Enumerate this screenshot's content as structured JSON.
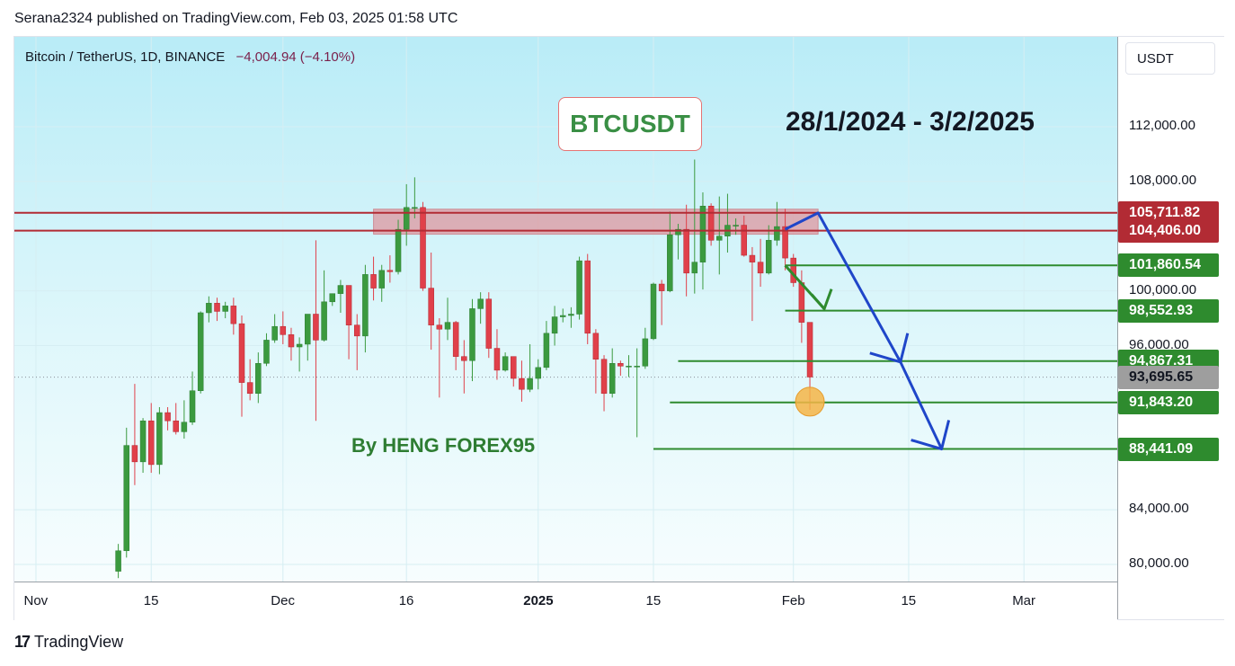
{
  "header": "Serana2324 published on TradingView.com, Feb 03, 2025 01:58 UTC",
  "symbol": {
    "name": "Bitcoin / TetherUS, 1D, BINANCE",
    "change": "−4,004.94 (−4.10%)"
  },
  "annotations": {
    "title": "BTCUSDT",
    "date_range": "28/1/2024 - 3/2/2025",
    "author": "By HENG FOREX95"
  },
  "currency": "USDT",
  "footer": {
    "logo": "17",
    "text": "TradingView"
  },
  "colors": {
    "up": "#3b9a3f",
    "down": "#e0404a",
    "line_red": "#b22b34",
    "line_green": "#2e8b2e",
    "arrow": "#1f46c9",
    "marker": "#f5b547",
    "current": "#9e9e9e"
  },
  "chart_data": {
    "type": "candlestick",
    "ylim": [
      79000,
      117000
    ],
    "y_ticks": [
      {
        "value": 112000,
        "label": "112,000.00"
      },
      {
        "value": 108000,
        "label": "108,000.00"
      },
      {
        "value": 100000,
        "label": "100,000.00"
      },
      {
        "value": 96000,
        "label": "96,000.00"
      },
      {
        "value": 84000,
        "label": "84,000.00"
      },
      {
        "value": 80000,
        "label": "80,000.00"
      }
    ],
    "x_ticks": [
      {
        "label": "Nov",
        "date": "2024-11-01",
        "bold": false
      },
      {
        "label": "15",
        "date": "2024-11-15",
        "bold": false
      },
      {
        "label": "Dec",
        "date": "2024-12-01",
        "bold": false
      },
      {
        "label": "16",
        "date": "2024-12-16",
        "bold": false
      },
      {
        "label": "2025",
        "date": "2025-01-01",
        "bold": true
      },
      {
        "label": "15",
        "date": "2025-01-15",
        "bold": false
      },
      {
        "label": "Feb",
        "date": "2025-02-01",
        "bold": false
      },
      {
        "label": "15",
        "date": "2025-02-15",
        "bold": false
      },
      {
        "label": "Mar",
        "date": "2025-03-01",
        "bold": false
      }
    ],
    "candles": [
      {
        "date": "2024-11-11",
        "o": 79500,
        "h": 81500,
        "l": 79000,
        "c": 81000
      },
      {
        "date": "2024-11-12",
        "o": 81000,
        "h": 90000,
        "l": 80500,
        "c": 88700
      },
      {
        "date": "2024-11-13",
        "o": 88700,
        "h": 93200,
        "l": 85800,
        "c": 87500
      },
      {
        "date": "2024-11-14",
        "o": 87500,
        "h": 90700,
        "l": 86700,
        "c": 90500
      },
      {
        "date": "2024-11-15",
        "o": 90500,
        "h": 91800,
        "l": 86700,
        "c": 87300
      },
      {
        "date": "2024-11-16",
        "o": 87300,
        "h": 91500,
        "l": 86600,
        "c": 91100
      },
      {
        "date": "2024-11-17",
        "o": 91100,
        "h": 91500,
        "l": 89800,
        "c": 90500
      },
      {
        "date": "2024-11-18",
        "o": 90500,
        "h": 91800,
        "l": 89500,
        "c": 89700
      },
      {
        "date": "2024-11-19",
        "o": 89700,
        "h": 92000,
        "l": 89200,
        "c": 90400
      },
      {
        "date": "2024-11-20",
        "o": 90400,
        "h": 94100,
        "l": 90200,
        "c": 92700
      },
      {
        "date": "2024-11-21",
        "o": 92700,
        "h": 98500,
        "l": 92500,
        "c": 98400
      },
      {
        "date": "2024-11-22",
        "o": 98400,
        "h": 99600,
        "l": 97700,
        "c": 99100
      },
      {
        "date": "2024-11-23",
        "o": 99100,
        "h": 99500,
        "l": 97800,
        "c": 98500
      },
      {
        "date": "2024-11-24",
        "o": 98500,
        "h": 99200,
        "l": 98000,
        "c": 98900
      },
      {
        "date": "2024-11-25",
        "o": 98900,
        "h": 99500,
        "l": 96800,
        "c": 97600
      },
      {
        "date": "2024-11-26",
        "o": 97600,
        "h": 98200,
        "l": 90800,
        "c": 93300
      },
      {
        "date": "2024-11-27",
        "o": 93300,
        "h": 95000,
        "l": 92000,
        "c": 92500
      },
      {
        "date": "2024-11-28",
        "o": 92500,
        "h": 95500,
        "l": 91800,
        "c": 94700
      },
      {
        "date": "2024-11-29",
        "o": 94700,
        "h": 96900,
        "l": 94500,
        "c": 96400
      },
      {
        "date": "2024-11-30",
        "o": 96400,
        "h": 98300,
        "l": 96200,
        "c": 97400
      },
      {
        "date": "2024-12-01",
        "o": 97400,
        "h": 98500,
        "l": 96100,
        "c": 96800
      },
      {
        "date": "2024-12-02",
        "o": 96800,
        "h": 97300,
        "l": 94900,
        "c": 95900
      },
      {
        "date": "2024-12-03",
        "o": 95900,
        "h": 96600,
        "l": 94100,
        "c": 96100
      },
      {
        "date": "2024-12-04",
        "o": 96100,
        "h": 98200,
        "l": 94900,
        "c": 98300
      },
      {
        "date": "2024-12-05",
        "o": 98300,
        "h": 103700,
        "l": 90500,
        "c": 96400
      },
      {
        "date": "2024-12-06",
        "o": 96400,
        "h": 101500,
        "l": 96300,
        "c": 99200
      },
      {
        "date": "2024-12-07",
        "o": 99200,
        "h": 99800,
        "l": 98900,
        "c": 99800
      },
      {
        "date": "2024-12-08",
        "o": 99800,
        "h": 100800,
        "l": 98400,
        "c": 100400
      },
      {
        "date": "2024-12-09",
        "o": 100400,
        "h": 100400,
        "l": 95000,
        "c": 97500
      },
      {
        "date": "2024-12-10",
        "o": 97500,
        "h": 98300,
        "l": 94200,
        "c": 96700
      },
      {
        "date": "2024-12-11",
        "o": 96700,
        "h": 101900,
        "l": 95500,
        "c": 101200
      },
      {
        "date": "2024-12-12",
        "o": 101200,
        "h": 102500,
        "l": 99300,
        "c": 100200
      },
      {
        "date": "2024-12-13",
        "o": 100200,
        "h": 101900,
        "l": 99200,
        "c": 101500
      },
      {
        "date": "2024-12-14",
        "o": 101500,
        "h": 102600,
        "l": 100600,
        "c": 101400
      },
      {
        "date": "2024-12-15",
        "o": 101400,
        "h": 105200,
        "l": 101200,
        "c": 104500
      },
      {
        "date": "2024-12-16",
        "o": 104500,
        "h": 107800,
        "l": 103300,
        "c": 106100
      },
      {
        "date": "2024-12-17",
        "o": 106100,
        "h": 108300,
        "l": 105300,
        "c": 106100
      },
      {
        "date": "2024-12-18",
        "o": 106100,
        "h": 106500,
        "l": 100000,
        "c": 100200
      },
      {
        "date": "2024-12-19",
        "o": 100200,
        "h": 102800,
        "l": 95700,
        "c": 97500
      },
      {
        "date": "2024-12-20",
        "o": 97500,
        "h": 98000,
        "l": 92200,
        "c": 97200
      },
      {
        "date": "2024-12-21",
        "o": 97200,
        "h": 99500,
        "l": 96400,
        "c": 97700
      },
      {
        "date": "2024-12-22",
        "o": 97700,
        "h": 97800,
        "l": 94200,
        "c": 95200
      },
      {
        "date": "2024-12-23",
        "o": 95200,
        "h": 96400,
        "l": 92500,
        "c": 94900
      },
      {
        "date": "2024-12-24",
        "o": 94900,
        "h": 99400,
        "l": 93400,
        "c": 98700
      },
      {
        "date": "2024-12-25",
        "o": 98700,
        "h": 99900,
        "l": 97600,
        "c": 99400
      },
      {
        "date": "2024-12-26",
        "o": 99400,
        "h": 99900,
        "l": 95100,
        "c": 95800
      },
      {
        "date": "2024-12-27",
        "o": 95800,
        "h": 97200,
        "l": 93500,
        "c": 94200
      },
      {
        "date": "2024-12-28",
        "o": 94200,
        "h": 95500,
        "l": 94100,
        "c": 95200
      },
      {
        "date": "2024-12-29",
        "o": 95200,
        "h": 95200,
        "l": 93000,
        "c": 93600
      },
      {
        "date": "2024-12-30",
        "o": 93600,
        "h": 94900,
        "l": 91900,
        "c": 92800
      },
      {
        "date": "2024-12-31",
        "o": 92800,
        "h": 96100,
        "l": 92600,
        "c": 93600
      },
      {
        "date": "2025-01-01",
        "o": 93600,
        "h": 95000,
        "l": 92800,
        "c": 94400
      },
      {
        "date": "2025-01-02",
        "o": 94400,
        "h": 97800,
        "l": 94200,
        "c": 96900
      },
      {
        "date": "2025-01-03",
        "o": 96900,
        "h": 98900,
        "l": 96000,
        "c": 98100
      },
      {
        "date": "2025-01-04",
        "o": 98100,
        "h": 98700,
        "l": 97700,
        "c": 98200
      },
      {
        "date": "2025-01-05",
        "o": 98200,
        "h": 98800,
        "l": 97300,
        "c": 98300
      },
      {
        "date": "2025-01-06",
        "o": 98300,
        "h": 102500,
        "l": 97900,
        "c": 102200
      },
      {
        "date": "2025-01-07",
        "o": 102200,
        "h": 102700,
        "l": 96100,
        "c": 96900
      },
      {
        "date": "2025-01-08",
        "o": 96900,
        "h": 97200,
        "l": 92500,
        "c": 95000
      },
      {
        "date": "2025-01-09",
        "o": 95000,
        "h": 95300,
        "l": 91200,
        "c": 92500
      },
      {
        "date": "2025-01-10",
        "o": 92500,
        "h": 95800,
        "l": 92200,
        "c": 94700
      },
      {
        "date": "2025-01-11",
        "o": 94700,
        "h": 94900,
        "l": 93800,
        "c": 94500
      },
      {
        "date": "2025-01-12",
        "o": 94500,
        "h": 95300,
        "l": 93700,
        "c": 94500
      },
      {
        "date": "2025-01-13",
        "o": 94500,
        "h": 95800,
        "l": 89300,
        "c": 94500
      },
      {
        "date": "2025-01-14",
        "o": 94500,
        "h": 97300,
        "l": 94300,
        "c": 96500
      },
      {
        "date": "2025-01-15",
        "o": 96500,
        "h": 100600,
        "l": 96400,
        "c": 100500
      },
      {
        "date": "2025-01-16",
        "o": 100500,
        "h": 100800,
        "l": 97500,
        "c": 100000
      },
      {
        "date": "2025-01-17",
        "o": 100000,
        "h": 105800,
        "l": 99900,
        "c": 104100
      },
      {
        "date": "2025-01-18",
        "o": 104100,
        "h": 104900,
        "l": 102300,
        "c": 104500
      },
      {
        "date": "2025-01-19",
        "o": 104500,
        "h": 106300,
        "l": 99600,
        "c": 101300
      },
      {
        "date": "2025-01-20",
        "o": 101300,
        "h": 109600,
        "l": 99800,
        "c": 102100
      },
      {
        "date": "2025-01-21",
        "o": 102100,
        "h": 107200,
        "l": 100100,
        "c": 106200
      },
      {
        "date": "2025-01-22",
        "o": 106200,
        "h": 106400,
        "l": 103300,
        "c": 103700
      },
      {
        "date": "2025-01-23",
        "o": 103700,
        "h": 106900,
        "l": 101200,
        "c": 104000
      },
      {
        "date": "2025-01-24",
        "o": 104000,
        "h": 107100,
        "l": 102800,
        "c": 104800
      },
      {
        "date": "2025-01-25",
        "o": 104800,
        "h": 105300,
        "l": 104100,
        "c": 104800
      },
      {
        "date": "2025-01-26",
        "o": 104800,
        "h": 105500,
        "l": 102500,
        "c": 102600
      },
      {
        "date": "2025-01-27",
        "o": 102600,
        "h": 103200,
        "l": 97800,
        "c": 102100
      },
      {
        "date": "2025-01-28",
        "o": 102100,
        "h": 103800,
        "l": 100300,
        "c": 101300
      },
      {
        "date": "2025-01-29",
        "o": 101300,
        "h": 104800,
        "l": 101200,
        "c": 103700
      },
      {
        "date": "2025-01-30",
        "o": 103700,
        "h": 106500,
        "l": 103300,
        "c": 104700
      },
      {
        "date": "2025-01-31",
        "o": 104700,
        "h": 106000,
        "l": 101500,
        "c": 102400
      },
      {
        "date": "2025-02-01",
        "o": 102400,
        "h": 102700,
        "l": 100300,
        "c": 100600
      },
      {
        "date": "2025-02-02",
        "o": 100600,
        "h": 101500,
        "l": 96200,
        "c": 97700
      },
      {
        "date": "2025-02-03",
        "o": 97700,
        "h": 97700,
        "l": 91300,
        "c": 93700
      }
    ],
    "zone": {
      "from_date": "2024-12-12",
      "to_date": "2025-02-04",
      "low": 104406.0,
      "high": 105711.82
    },
    "resistance_lines": [
      {
        "value": 105711.82,
        "label": "105,711.82"
      },
      {
        "value": 104406.0,
        "label": "104,406.00"
      }
    ],
    "support_lines": [
      {
        "value": 101860.54,
        "label": "101,860.54",
        "from_date": "2025-01-31"
      },
      {
        "value": 98552.93,
        "label": "98,552.93",
        "from_date": "2025-01-31"
      },
      {
        "value": 94867.31,
        "label": "94,867.31",
        "from_date": "2025-01-18"
      },
      {
        "value": 91843.2,
        "label": "91,843.20",
        "from_date": "2025-01-17"
      },
      {
        "value": 88441.09,
        "label": "88,441.09",
        "from_date": "2025-01-15"
      }
    ],
    "current_price": {
      "value": 93695.65,
      "label": "93,695.65"
    },
    "marker": {
      "date": "2025-02-03",
      "value": 91900
    },
    "projection": [
      {
        "date": "2025-01-31",
        "value": 104500
      },
      {
        "date": "2025-02-04",
        "value": 105700
      },
      {
        "date": "2025-02-14",
        "value": 94800
      },
      {
        "date": "2025-02-19",
        "value": 88441.09
      }
    ],
    "small_arrow": [
      {
        "date": "2025-01-31",
        "value": 101860.54
      },
      {
        "date": "2025-02-03",
        "value": 98552.93
      }
    ]
  }
}
